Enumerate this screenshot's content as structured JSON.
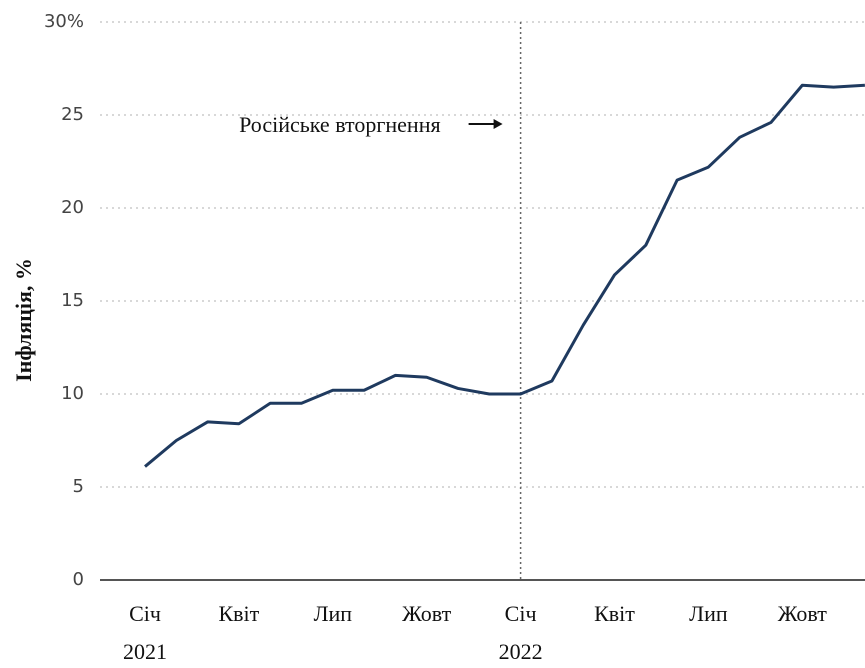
{
  "chart_data": {
    "type": "line",
    "y_label": "Інфляція, %",
    "categories": [
      "Січ 2021",
      null,
      null,
      "Квіт",
      null,
      null,
      "Лип",
      null,
      null,
      "Жовт",
      null,
      null,
      "Січ 2022",
      null,
      null,
      "Квіт",
      null,
      null,
      "Лип",
      null,
      null,
      "Жовт",
      null,
      null
    ],
    "series": [
      {
        "name": "Інфляція",
        "color": "#1f3a5f",
        "values": [
          6.1,
          7.5,
          8.5,
          8.4,
          9.5,
          9.5,
          10.2,
          10.2,
          11.0,
          10.9,
          10.3,
          10.0,
          10.0,
          10.7,
          13.7,
          16.4,
          18.0,
          21.5,
          22.2,
          23.8,
          24.6,
          26.6,
          26.5,
          26.6
        ]
      }
    ],
    "ylim": [
      0,
      30
    ],
    "yticks": [
      0,
      5,
      10,
      15,
      20,
      25,
      {
        "value": 30,
        "label": "30%"
      }
    ],
    "grid": true,
    "annotations": [
      {
        "text": "Російське вторгнення",
        "category": "Січ 2022"
      }
    ]
  }
}
